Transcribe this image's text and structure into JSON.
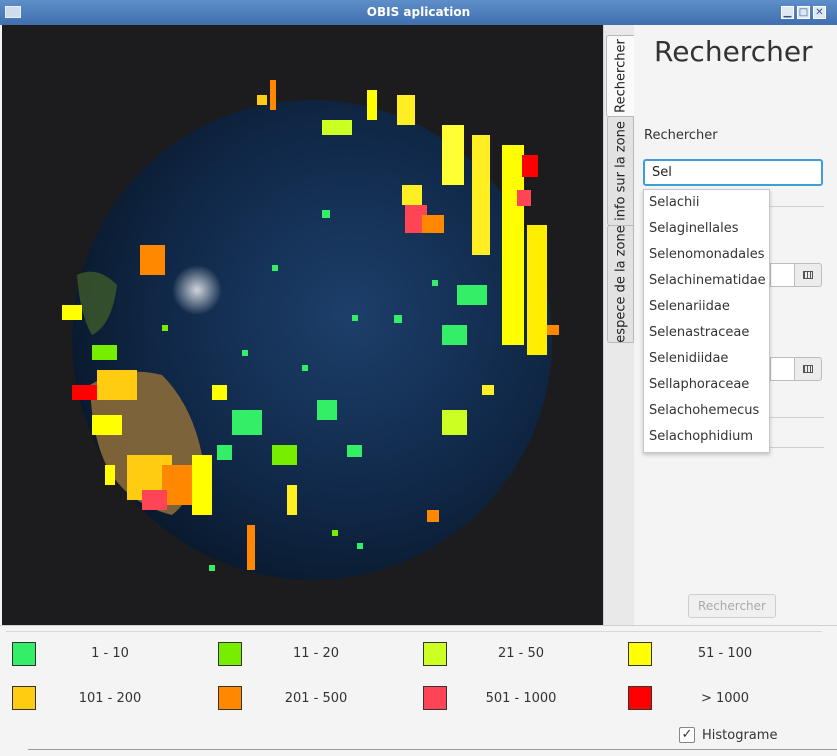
{
  "window": {
    "title": "OBIS aplication",
    "minimize": "▁",
    "maximize": "□",
    "close": "✕"
  },
  "tabs": [
    {
      "label": "Rechercher",
      "active": true
    },
    {
      "label": "info sur la zone",
      "active": false
    },
    {
      "label": "espece de la zone",
      "active": false
    }
  ],
  "side": {
    "title": "Rechercher",
    "search_label": "Rechercher",
    "search_value": "Sel",
    "suggestions": [
      "Selachii",
      "Selaginellales",
      "Selenomonadales",
      "Selachinematidae",
      "Selenariidae",
      "Selenastraceae",
      "Selenidiidae",
      "Sellaphoraceae",
      "Selachohemecus",
      "Selachophidium"
    ],
    "submit_label": "Rechercher"
  },
  "legend": [
    {
      "label": "1 - 10",
      "color": "#33ee66"
    },
    {
      "label": "11 - 20",
      "color": "#77ee00"
    },
    {
      "label": "21 - 50",
      "color": "#ccff22"
    },
    {
      "label": "51 - 100",
      "color": "#ffff00"
    },
    {
      "label": "101 - 200",
      "color": "#ffcc11"
    },
    {
      "label": "201 - 500",
      "color": "#ff8800"
    },
    {
      "label": "501 - 1000",
      "color": "#ff4455"
    },
    {
      "label": "> 1000",
      "color": "#ff0000"
    }
  ],
  "histogram": {
    "label": "Histograme",
    "checked": true
  }
}
